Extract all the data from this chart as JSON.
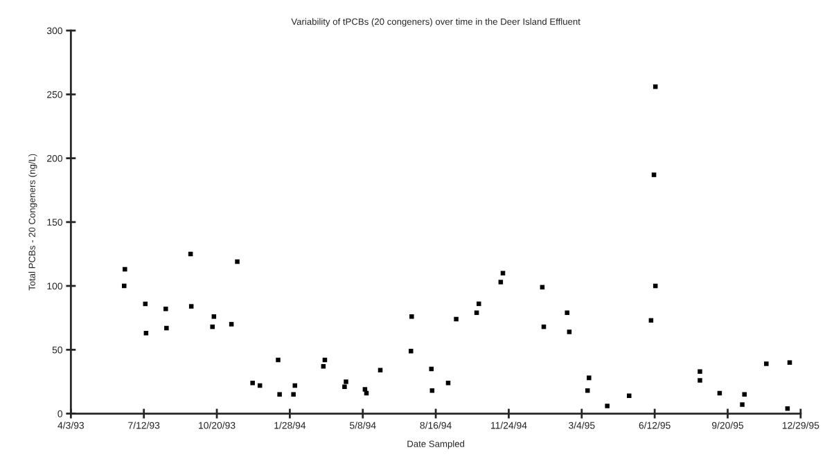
{
  "chart_data": {
    "type": "scatter",
    "title": "Variability of tPCBs (20 congeners) over time in the Deer Island Effluent",
    "xlabel": "Date Sampled",
    "ylabel": "Total PCBs - 20 Congeners (ng/L)",
    "x": [
      "1993-06-15",
      "1993-06-16",
      "1993-07-14",
      "1993-07-15",
      "1993-08-11",
      "1993-08-12",
      "1993-09-14",
      "1993-09-15",
      "1993-10-14",
      "1993-10-16",
      "1993-11-09",
      "1993-11-17",
      "1993-12-08",
      "1993-12-18",
      "1994-01-12",
      "1994-01-14",
      "1994-02-02",
      "1994-02-04",
      "1994-03-15",
      "1994-03-17",
      "1994-04-13",
      "1994-04-15",
      "1994-05-11",
      "1994-05-13",
      "1994-06-01",
      "1994-07-13",
      "1994-07-14",
      "1994-08-10",
      "1994-08-11",
      "1994-09-02",
      "1994-09-13",
      "1994-10-11",
      "1994-10-14",
      "1994-11-13",
      "1994-11-16",
      "1995-01-09",
      "1995-01-11",
      "1995-02-12",
      "1995-02-15",
      "1995-03-12",
      "1995-03-14",
      "1995-04-08",
      "1995-05-08",
      "1995-06-07",
      "1995-06-13",
      "1995-06-11",
      "1995-06-13",
      "1995-08-13",
      "1995-08-13",
      "1995-09-09",
      "1995-10-10",
      "1995-10-13",
      "1995-11-12",
      "1995-12-11",
      "1995-12-14"
    ],
    "series": [
      {
        "color": "#000000",
        "values": [
          100,
          113,
          86,
          63,
          82,
          67,
          125,
          84,
          68,
          76,
          70,
          119,
          24,
          22,
          42,
          15,
          15,
          22,
          37,
          42,
          21,
          25,
          19,
          16,
          34,
          49,
          76,
          35,
          18,
          24,
          74,
          79,
          86,
          103,
          110,
          99,
          68,
          79,
          64,
          18,
          28,
          6,
          14,
          73,
          100,
          187,
          256,
          33,
          26,
          16,
          7,
          15,
          39,
          4,
          40
        ]
      }
    ],
    "xlim": [
      "1993-04-03",
      "1995-12-29"
    ],
    "xticks": [
      {
        "value": "1993-04-03",
        "label": "4/3/93"
      },
      {
        "value": "1993-07-12",
        "label": "7/12/93"
      },
      {
        "value": "1993-10-20",
        "label": "10/20/93"
      },
      {
        "value": "1994-01-28",
        "label": "1/28/94"
      },
      {
        "value": "1994-05-08",
        "label": "5/8/94"
      },
      {
        "value": "1994-08-16",
        "label": "8/16/94"
      },
      {
        "value": "1994-11-24",
        "label": "11/24/94"
      },
      {
        "value": "1995-03-04",
        "label": "3/4/95"
      },
      {
        "value": "1995-06-12",
        "label": "6/12/95"
      },
      {
        "value": "1995-09-20",
        "label": "9/20/95"
      },
      {
        "value": "1995-12-29",
        "label": "12/29/95"
      }
    ],
    "ylim": [
      0,
      300
    ],
    "yticks": [
      0,
      50,
      100,
      150,
      200,
      250,
      300
    ],
    "marker": "square",
    "grid": false,
    "legend": false
  }
}
